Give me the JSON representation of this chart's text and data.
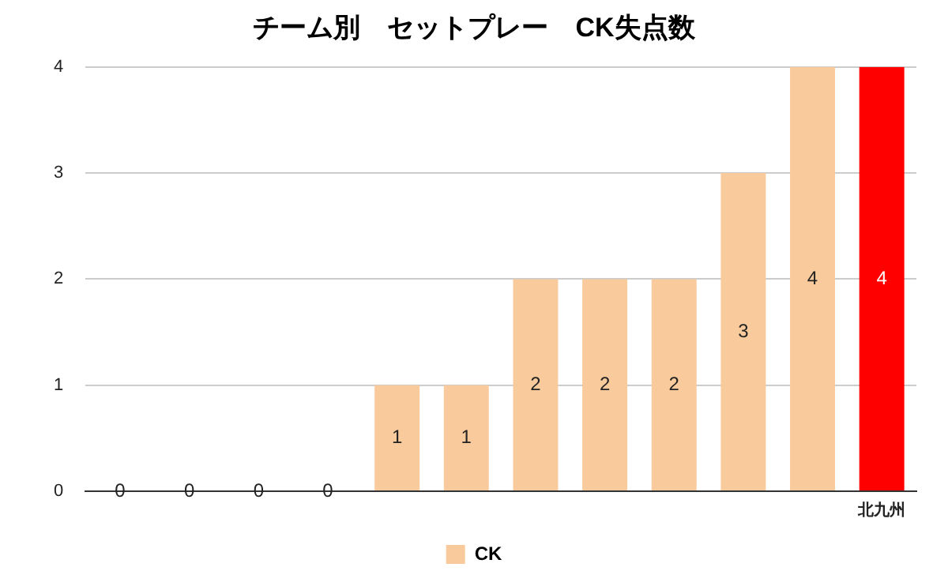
{
  "chart_data": {
    "type": "bar",
    "title": "チーム別　セットプレー　CK失点数",
    "categories": [
      null,
      null,
      null,
      null,
      null,
      null,
      null,
      null,
      null,
      null,
      null,
      "北九州"
    ],
    "series": [
      {
        "name": "CK",
        "color": "#f9cb9c",
        "colors": [
          "#f9cb9c",
          "#f9cb9c",
          "#f9cb9c",
          "#f9cb9c",
          "#f9cb9c",
          "#f9cb9c",
          "#f9cb9c",
          "#f9cb9c",
          "#f9cb9c",
          "#f9cb9c",
          "#f9cb9c",
          "#ff0000"
        ],
        "values": [
          0,
          0,
          0,
          0,
          1,
          1,
          2,
          2,
          2,
          3,
          4,
          4
        ]
      }
    ],
    "ylim": [
      0,
      4
    ],
    "yticks": [
      0,
      1,
      2,
      3,
      4
    ],
    "grid": "y",
    "legend": "bottom",
    "data_labels": true
  }
}
